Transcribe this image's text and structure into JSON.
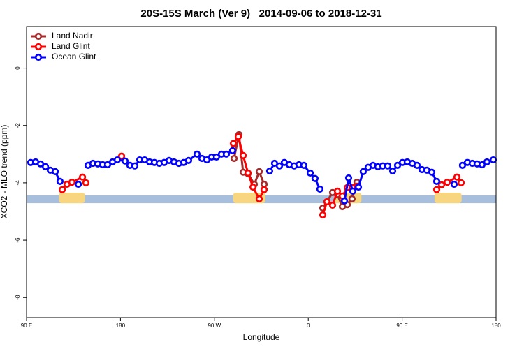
{
  "chart_data": {
    "type": "line",
    "title": "20S-15S March (Ver 9)   2014-09-06 to 2018-12-31",
    "x_label": "Longitude",
    "y_label": "XCO2 - MLO trend (ppm)",
    "xlim": [
      90,
      540
    ],
    "ylim": [
      -8.7,
      1.45
    ],
    "xticks": [
      {
        "value": 90,
        "label": "90 E"
      },
      180,
      {
        "value": 270,
        "label": "90 W"
      },
      {
        "value": 360,
        "label": "0"
      },
      {
        "value": 450,
        "label": "90 E"
      },
      {
        "value": 540,
        "label": "180"
      }
    ],
    "yticks": [
      0,
      -2,
      -4,
      -6,
      -8
    ],
    "legend": "topleft",
    "ocean_band": [
      -4.71,
      -4.44
    ],
    "ocean_color": "#a7bedd",
    "land_spans": [
      [
        121,
        146
      ],
      [
        288,
        319
      ],
      [
        385,
        411
      ],
      [
        481,
        507
      ]
    ],
    "land_color": "#f7d67f",
    "series": [
      {
        "name": "Land Nadir",
        "color": "#a52a2a",
        "x": [
          288.9,
          293.6,
          297.6,
          302.3,
          308.3,
          313.0,
          317.7,
          null,
          373.9,
          383.3,
          388.0,
          392.7,
          397.4,
          402.0,
          406.7
        ],
        "values": [
          -3.15,
          -2.32,
          -3.63,
          -3.68,
          -4.05,
          -3.61,
          -4.05,
          null,
          -4.88,
          -4.34,
          -4.41,
          -4.83,
          -4.76,
          -4.56,
          -3.98
        ]
      },
      {
        "name": "Land Glint",
        "color": "#ff0000",
        "x": [
          124.2,
          128.8,
          133.5,
          143.6,
          146.9,
          null,
          181.1,
          null,
          288.2,
          292.9,
          297.6,
          302.3,
          307.0,
          313.0,
          317.7,
          null,
          373.9,
          377.9,
          383.3,
          388.0,
          392.7,
          397.4,
          402.0,
          406.7,
          null,
          483.1,
          487.8,
          493.2,
          502.5,
          506.5
        ],
        "values": [
          -4.24,
          -4.05,
          -3.98,
          -3.8,
          -4.0,
          null,
          -3.07,
          null,
          -2.63,
          -2.39,
          -3.05,
          -3.66,
          -4.15,
          -4.56,
          -4.24,
          null,
          -5.12,
          -4.66,
          -4.78,
          -4.29,
          -4.46,
          -4.17,
          -4.17,
          -4.12,
          null,
          -4.24,
          -4.07,
          -3.98,
          -3.8,
          -4.0
        ]
      },
      {
        "name": "Ocean Glint",
        "color": "#0000ff",
        "x": [
          94.0,
          98.7,
          103.4,
          108.1,
          112.8,
          117.5,
          122.1,
          null,
          139.6,
          null,
          148.9,
          153.6,
          158.3,
          163.0,
          167.7,
          172.4,
          177.0,
          184.4,
          189.1,
          193.8,
          198.5,
          203.2,
          207.9,
          212.5,
          217.2,
          221.9,
          226.6,
          231.3,
          236.0,
          240.7,
          245.3,
          253.4,
          258.1,
          262.8,
          267.4,
          272.1,
          276.8,
          281.5,
          287.5,
          null,
          323.0,
          327.7,
          332.4,
          337.1,
          341.8,
          346.5,
          351.1,
          355.8,
          361.9,
          366.5,
          371.2,
          null,
          394.7,
          398.7,
          402.7,
          408.1,
          412.7,
          417.4,
          422.1,
          426.8,
          431.5,
          436.2,
          440.9,
          445.6,
          450.3,
          454.9,
          459.6,
          464.3,
          469.0,
          473.7,
          478.4,
          483.1,
          null,
          499.8,
          null,
          507.8,
          512.5,
          517.2,
          521.9,
          526.6,
          531.3,
          537.3
        ],
        "values": [
          -3.29,
          -3.27,
          -3.34,
          -3.44,
          -3.56,
          -3.61,
          -3.95,
          null,
          -4.05,
          null,
          -3.39,
          -3.32,
          -3.34,
          -3.37,
          -3.37,
          -3.27,
          -3.2,
          -3.24,
          -3.39,
          -3.41,
          -3.2,
          -3.2,
          -3.27,
          -3.29,
          -3.32,
          -3.29,
          -3.22,
          -3.27,
          -3.32,
          -3.29,
          -3.22,
          -3.0,
          -3.15,
          -3.2,
          -3.1,
          -3.1,
          -3.0,
          -3.0,
          -2.88,
          null,
          -3.59,
          -3.32,
          -3.41,
          -3.29,
          -3.37,
          -3.41,
          -3.37,
          -3.39,
          -3.66,
          -3.85,
          -4.22,
          null,
          -4.63,
          -3.83,
          -4.29,
          -4.15,
          -3.61,
          -3.46,
          -3.39,
          -3.44,
          -3.41,
          -3.41,
          -3.59,
          -3.39,
          -3.29,
          -3.27,
          -3.32,
          -3.39,
          -3.54,
          -3.56,
          -3.63,
          -3.95,
          null,
          -4.05,
          null,
          -3.39,
          -3.29,
          -3.32,
          -3.34,
          -3.37,
          -3.27,
          -3.2
        ]
      }
    ]
  }
}
